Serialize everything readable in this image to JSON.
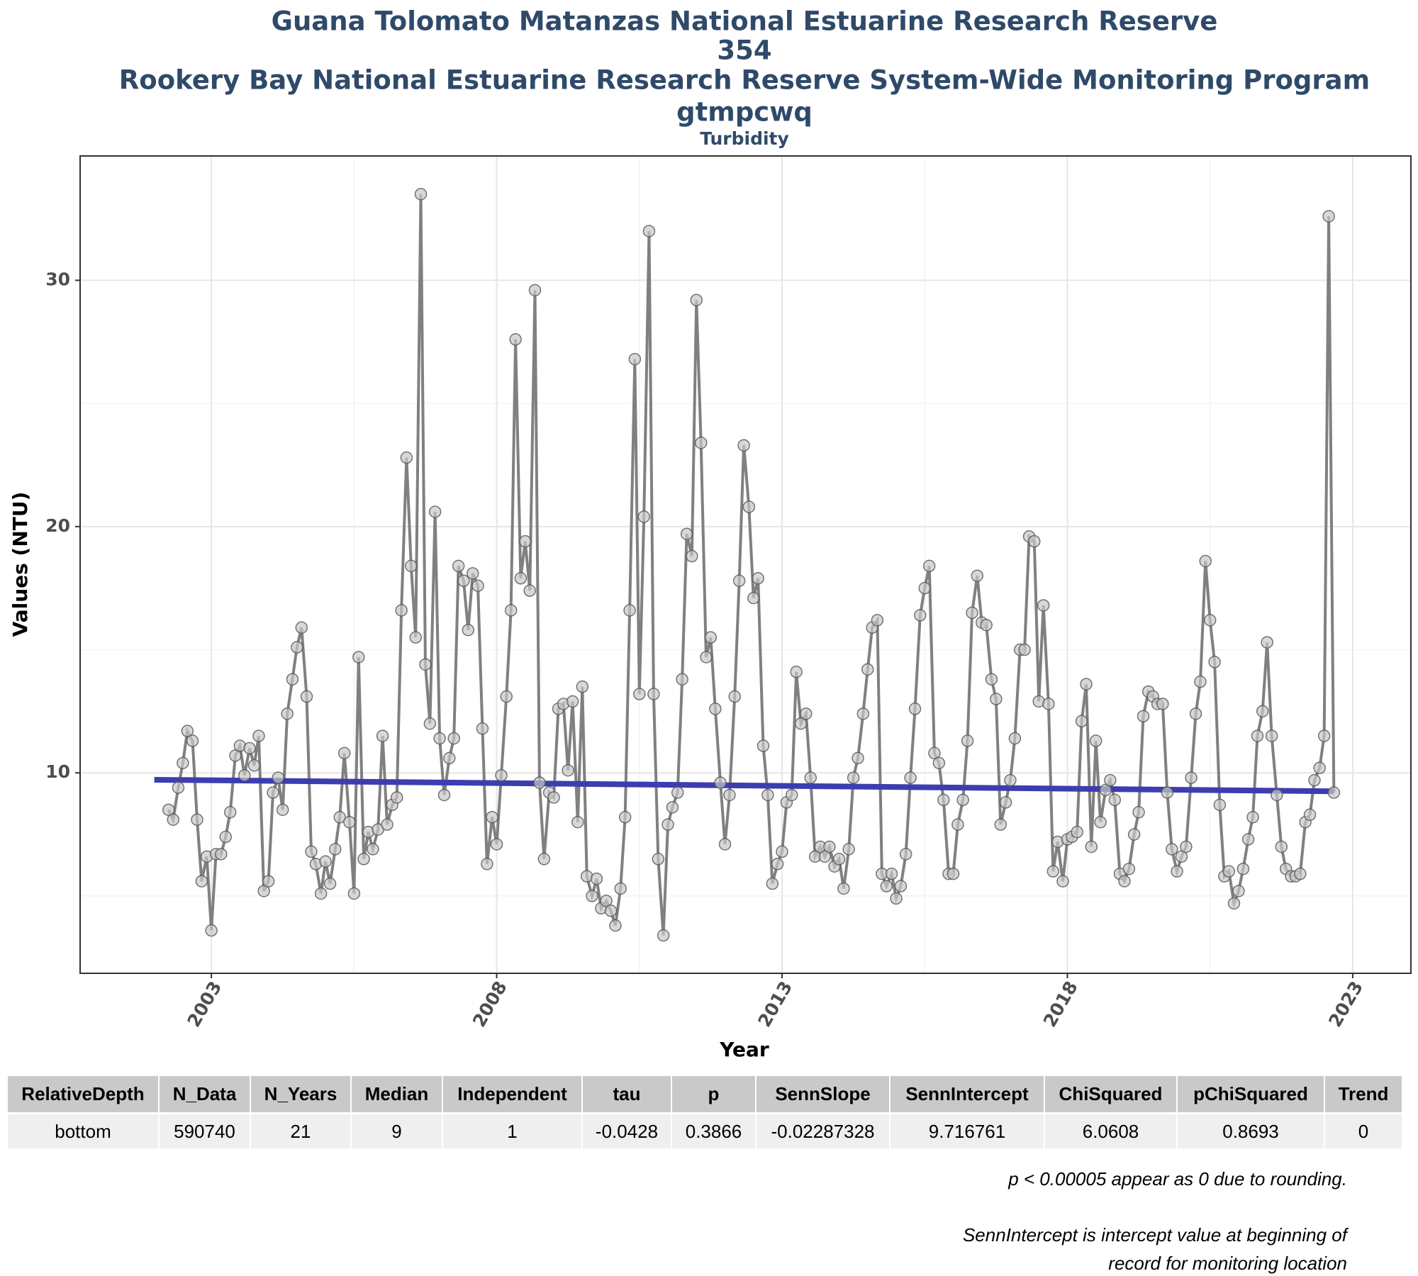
{
  "chart_data": {
    "type": "line",
    "title": [
      "Guana Tolomato Matanzas National Estuarine Research Reserve",
      "354",
      "Rookery Bay National Estuarine Research Reserve System-Wide Monitoring Program",
      "gtmpcwq"
    ],
    "subtitle": "Turbidity",
    "x_label": "Year",
    "y_label": "Values (NTU)",
    "xlim": [
      2000.7,
      2024.02
    ],
    "xticks": [
      2003,
      2008,
      2013,
      2018,
      2023
    ],
    "ylim": [
      1.86,
      35.05
    ],
    "yticks": [
      10,
      20,
      30
    ],
    "grid": true,
    "color": "#808080",
    "marker_fill": "#c8c8c8",
    "marker_edge": "#555555",
    "x": [
      2002.25,
      2002.33,
      2002.42,
      2002.5,
      2002.58,
      2002.67,
      2002.75,
      2002.83,
      2002.92,
      2003.0,
      2003.08,
      2003.17,
      2003.25,
      2003.33,
      2003.42,
      2003.5,
      2003.58,
      2003.67,
      2003.75,
      2003.83,
      2003.92,
      2004.0,
      2004.08,
      2004.17,
      2004.25,
      2004.33,
      2004.42,
      2004.5,
      2004.58,
      2004.67,
      2004.75,
      2004.83,
      2004.92,
      2005.0,
      2005.08,
      2005.17,
      2005.25,
      2005.33,
      2005.42,
      2005.5,
      2005.58,
      2005.67,
      2005.75,
      2005.83,
      2005.92,
      2006.0,
      2006.08,
      2006.17,
      2006.25,
      2006.33,
      2006.42,
      2006.5,
      2006.58,
      2006.67,
      2006.75,
      2006.83,
      2006.92,
      2007.0,
      2007.08,
      2007.17,
      2007.25,
      2007.33,
      2007.42,
      2007.5,
      2007.58,
      2007.67,
      2007.75,
      2007.83,
      2007.92,
      2008.0,
      2008.08,
      2008.17,
      2008.25,
      2008.33,
      2008.42,
      2008.5,
      2008.58,
      2008.67,
      2008.75,
      2008.83,
      2008.92,
      2009.0,
      2009.08,
      2009.17,
      2009.25,
      2009.33,
      2009.42,
      2009.5,
      2009.58,
      2009.67,
      2009.75,
      2009.83,
      2009.92,
      2010.0,
      2010.08,
      2010.17,
      2010.25,
      2010.33,
      2010.42,
      2010.5,
      2010.58,
      2010.67,
      2010.75,
      2010.83,
      2010.92,
      2011.0,
      2011.08,
      2011.17,
      2011.25,
      2011.33,
      2011.42,
      2011.5,
      2011.58,
      2011.67,
      2011.75,
      2011.83,
      2011.92,
      2012.0,
      2012.08,
      2012.17,
      2012.25,
      2012.33,
      2012.42,
      2012.5,
      2012.58,
      2012.67,
      2012.75,
      2012.83,
      2012.92,
      2013.0,
      2013.08,
      2013.17,
      2013.25,
      2013.33,
      2013.42,
      2013.5,
      2013.58,
      2013.67,
      2013.75,
      2013.83,
      2013.92,
      2014.0,
      2014.08,
      2014.17,
      2014.25,
      2014.33,
      2014.42,
      2014.5,
      2014.58,
      2014.67,
      2014.75,
      2014.83,
      2014.92,
      2015.0,
      2015.08,
      2015.17,
      2015.25,
      2015.33,
      2015.42,
      2015.5,
      2015.58,
      2015.67,
      2015.75,
      2015.83,
      2015.92,
      2016.0,
      2016.08,
      2016.17,
      2016.25,
      2016.33,
      2016.42,
      2016.5,
      2016.58,
      2016.67,
      2016.75,
      2016.83,
      2016.92,
      2017.0,
      2017.08,
      2017.17,
      2017.25,
      2017.33,
      2017.42,
      2017.5,
      2017.58,
      2017.67,
      2017.75,
      2017.83,
      2017.92,
      2018.0,
      2018.08,
      2018.17,
      2018.25,
      2018.33,
      2018.42,
      2018.5,
      2018.58,
      2018.67,
      2018.75,
      2018.83,
      2018.92,
      2019.0,
      2019.08,
      2019.17,
      2019.25,
      2019.33,
      2019.42,
      2019.5,
      2019.58,
      2019.67,
      2019.75,
      2019.83,
      2019.92,
      2020.0,
      2020.08,
      2020.17,
      2020.25,
      2020.33,
      2020.42,
      2020.5,
      2020.58,
      2020.67,
      2020.75,
      2020.83,
      2020.92,
      2021.0,
      2021.08,
      2021.17,
      2021.25,
      2021.33,
      2021.42,
      2021.5,
      2021.58,
      2021.67,
      2021.75,
      2021.83,
      2021.92,
      2022.0,
      2022.08,
      2022.17,
      2022.25,
      2022.33,
      2022.42,
      2022.5,
      2022.58,
      2022.67
    ],
    "values": [
      8.5,
      8.1,
      9.4,
      10.4,
      11.7,
      11.3,
      8.1,
      5.6,
      6.6,
      3.6,
      6.7,
      6.7,
      7.4,
      8.4,
      10.7,
      11.1,
      9.9,
      11.0,
      10.3,
      11.5,
      5.2,
      5.6,
      9.2,
      9.8,
      8.5,
      12.4,
      13.8,
      15.1,
      15.9,
      13.1,
      6.8,
      6.3,
      5.1,
      6.4,
      5.5,
      6.9,
      8.2,
      10.8,
      8.0,
      5.1,
      14.7,
      6.5,
      7.6,
      6.9,
      7.7,
      11.5,
      7.9,
      8.7,
      9.0,
      16.6,
      22.8,
      18.4,
      15.5,
      33.5,
      14.4,
      12.0,
      20.6,
      11.4,
      9.1,
      10.6,
      11.4,
      18.4,
      17.8,
      15.8,
      18.1,
      17.6,
      11.8,
      6.3,
      8.2,
      7.1,
      9.9,
      13.1,
      16.6,
      27.6,
      17.9,
      19.4,
      17.4,
      29.6,
      9.6,
      6.5,
      9.2,
      9.0,
      12.6,
      12.8,
      10.1,
      12.9,
      8.0,
      13.5,
      5.8,
      5.0,
      5.7,
      4.5,
      4.8,
      4.4,
      3.8,
      5.3,
      8.2,
      16.6,
      26.8,
      13.2,
      20.4,
      32.0,
      13.2,
      6.5,
      3.4,
      7.9,
      8.6,
      9.2,
      13.8,
      19.7,
      18.8,
      29.2,
      23.4,
      14.7,
      15.5,
      12.6,
      9.6,
      7.1,
      9.1,
      13.1,
      17.8,
      23.3,
      20.8,
      17.1,
      17.9,
      11.1,
      9.1,
      5.5,
      6.3,
      6.8,
      8.8,
      9.1,
      14.1,
      12.0,
      12.4,
      9.8,
      6.6,
      7.0,
      6.6,
      7.0,
      6.2,
      6.5,
      5.3,
      6.9,
      9.8,
      10.6,
      12.4,
      14.2,
      15.9,
      16.2,
      5.9,
      5.4,
      5.9,
      4.9,
      5.4,
      6.7,
      9.8,
      12.6,
      16.4,
      17.5,
      18.4,
      10.8,
      10.4,
      8.9,
      5.9,
      5.9,
      7.9,
      8.9,
      11.3,
      16.5,
      18.0,
      16.1,
      16.0,
      13.8,
      13.0,
      7.9,
      8.8,
      9.7,
      11.4,
      15.0,
      15.0,
      19.6,
      19.4,
      12.9,
      16.8,
      12.8,
      6.0,
      7.2,
      5.6,
      7.3,
      7.4,
      7.6,
      12.1,
      13.6,
      7.0,
      11.3,
      8.0,
      9.3,
      9.7,
      8.9,
      5.9,
      5.6,
      6.1,
      7.5,
      8.4,
      12.3,
      13.3,
      13.1,
      12.8,
      12.8,
      9.2,
      6.9,
      6.0,
      6.6,
      7.0,
      9.8,
      12.4,
      13.7,
      18.6,
      16.2,
      14.5,
      8.7,
      5.8,
      6.0,
      4.7,
      5.2,
      6.1,
      7.3,
      8.2,
      11.5,
      12.5,
      15.3,
      11.5,
      9.1,
      7.0,
      6.1,
      5.8,
      5.8,
      5.9,
      8.0,
      8.3,
      9.7,
      10.2,
      11.5,
      32.6,
      9.2
    ],
    "trend": {
      "color": "#3d3db0",
      "x": [
        2002.0,
        2022.67
      ],
      "values": [
        9.72,
        9.25
      ]
    }
  },
  "table": {
    "columns": [
      "RelativeDepth",
      "N_Data",
      "N_Years",
      "Median",
      "Independent",
      "tau",
      "p",
      "SennSlope",
      "SennIntercept",
      "ChiSquared",
      "pChiSquared",
      "Trend"
    ],
    "rows": [
      [
        "bottom",
        "590740",
        "21",
        "9",
        "1",
        "-0.0428",
        "0.3866",
        "-0.02287328",
        "9.716761",
        "6.0608",
        "0.8693",
        "0"
      ]
    ]
  },
  "notes": [
    "p < 0.00005 appear as 0 due to rounding.",
    "SennIntercept is intercept value at beginning of",
    "record for monitoring location"
  ]
}
